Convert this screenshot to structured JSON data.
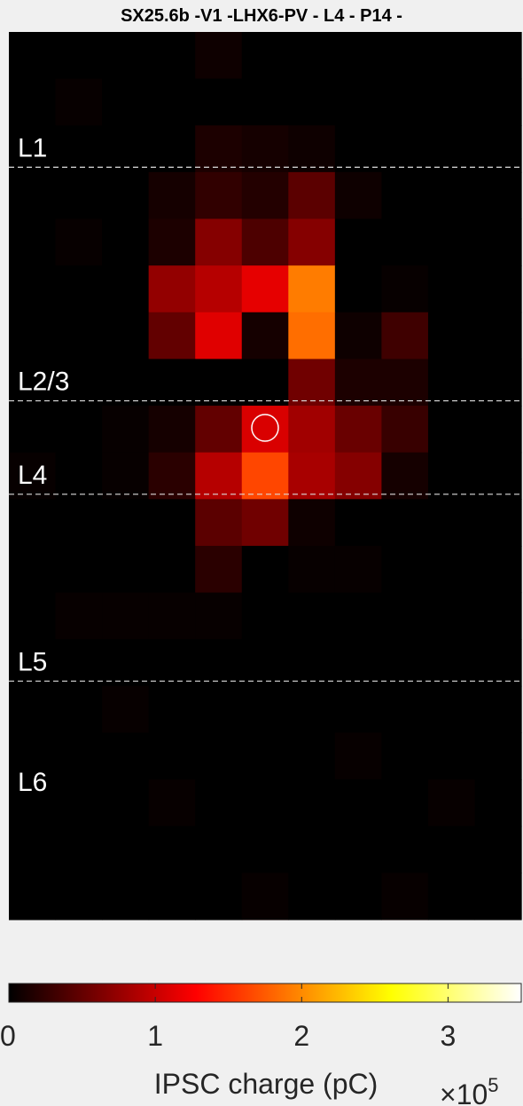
{
  "chart_data": {
    "type": "heatmap",
    "title": "SX25.6b -V1 -LHX6-PV - L4 - P14 -",
    "rows": 19,
    "cols": 11,
    "values": [
      [
        0.0,
        0.0,
        0.0,
        0.0,
        0.02,
        0.0,
        0.0,
        0.0,
        0.0,
        0.0,
        0.0
      ],
      [
        0.0,
        0.01,
        0.0,
        0.0,
        0.0,
        0.0,
        0.0,
        0.0,
        0.0,
        0.0,
        0.0
      ],
      [
        0.0,
        0.0,
        0.0,
        0.0,
        0.04,
        0.03,
        0.02,
        0.0,
        0.0,
        0.0,
        0.0
      ],
      [
        0.0,
        0.0,
        0.0,
        0.03,
        0.07,
        0.05,
        0.13,
        0.02,
        0.0,
        0.0,
        0.0
      ],
      [
        0.0,
        0.01,
        0.0,
        0.04,
        0.19,
        0.11,
        0.19,
        0.0,
        0.0,
        0.0,
        0.0
      ],
      [
        0.0,
        0.0,
        0.0,
        0.21,
        0.26,
        0.33,
        0.55,
        0.0,
        0.01,
        0.0,
        0.0
      ],
      [
        0.0,
        0.0,
        0.0,
        0.14,
        0.32,
        0.03,
        0.53,
        0.02,
        0.09,
        0.0,
        0.0
      ],
      [
        0.0,
        0.0,
        0.0,
        0.0,
        0.0,
        0.0,
        0.16,
        0.04,
        0.04,
        0.0,
        0.0
      ],
      [
        0.0,
        0.0,
        0.01,
        0.03,
        0.14,
        0.31,
        0.23,
        0.15,
        0.08,
        0.0,
        0.0
      ],
      [
        0.01,
        0.0,
        0.01,
        0.06,
        0.26,
        0.47,
        0.24,
        0.19,
        0.03,
        0.0,
        0.0
      ],
      [
        0.0,
        0.0,
        0.0,
        0.0,
        0.13,
        0.16,
        0.02,
        0.0,
        0.0,
        0.0,
        0.0
      ],
      [
        0.0,
        0.0,
        0.0,
        0.0,
        0.06,
        0.0,
        0.01,
        0.01,
        0.0,
        0.0,
        0.0
      ],
      [
        0.0,
        0.01,
        0.01,
        0.01,
        0.01,
        0.0,
        0.0,
        0.0,
        0.0,
        0.0,
        0.0
      ],
      [
        0.0,
        0.0,
        0.0,
        0.0,
        0.0,
        0.0,
        0.0,
        0.0,
        0.0,
        0.0,
        0.0
      ],
      [
        0.0,
        0.0,
        0.01,
        0.0,
        0.0,
        0.0,
        0.0,
        0.0,
        0.0,
        0.0,
        0.0
      ],
      [
        0.0,
        0.0,
        0.0,
        0.0,
        0.0,
        0.0,
        0.0,
        0.01,
        0.0,
        0.0,
        0.0
      ],
      [
        0.0,
        0.0,
        0.0,
        0.01,
        0.0,
        0.0,
        0.0,
        0.0,
        0.0,
        0.01,
        0.0
      ],
      [
        0.0,
        0.0,
        0.0,
        0.0,
        0.0,
        0.0,
        0.0,
        0.0,
        0.0,
        0.0,
        0.0
      ],
      [
        0.0,
        0.0,
        0.0,
        0.0,
        0.0,
        0.01,
        0.0,
        0.0,
        0.01,
        0.0,
        0.0
      ]
    ],
    "layers": [
      {
        "label": "L1",
        "boundary_row": 3
      },
      {
        "label": "L2/3",
        "boundary_row": 8
      },
      {
        "label": "L4",
        "boundary_row": 10
      },
      {
        "label": "L5",
        "boundary_row": 14
      },
      {
        "label": "L6"
      }
    ],
    "soma": {
      "row": 8,
      "col": 5.5
    },
    "colormap": "hot",
    "colorbar": {
      "label": "IPSC charge (pC)",
      "min": 0,
      "max": 3.5,
      "ticks": [
        "0",
        "1",
        "2",
        "3"
      ],
      "exponent_prefix": "×10",
      "exponent_power": "5"
    }
  }
}
